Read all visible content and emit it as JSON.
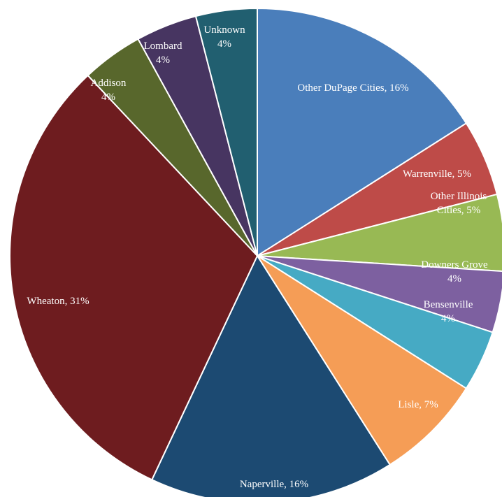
{
  "chart_data": {
    "type": "pie",
    "title": "",
    "start_angle_deg": 0,
    "direction": "clockwise",
    "slices": [
      {
        "label": "Other DuPage Cities",
        "value": 16,
        "display": [
          "Other DuPage Cities, 16%"
        ],
        "color": "#4a7ebb"
      },
      {
        "label": "Warrenville",
        "value": 5,
        "display": [
          "Warrenville, 5%"
        ],
        "color": "#be4b48"
      },
      {
        "label": "Other Illinois Cities",
        "value": 5,
        "display": [
          "Other Illinois",
          "Cities, 5%"
        ],
        "color": "#98b954"
      },
      {
        "label": "Downers Grove",
        "value": 4,
        "display": [
          "Downers Grove",
          "4%"
        ],
        "color": "#7d60a0"
      },
      {
        "label": "Bensenville",
        "value": 4,
        "display": [
          "Bensenville",
          "4%"
        ],
        "color": "#46aac4"
      },
      {
        "label": "Lisle",
        "value": 7,
        "display": [
          "Lisle, 7%"
        ],
        "color": "#f59d56"
      },
      {
        "label": "Naperville",
        "value": 16,
        "display": [
          "Naperville, 16%"
        ],
        "color": "#1c4a72"
      },
      {
        "label": "Wheaton",
        "value": 31,
        "display": [
          "Wheaton, 31%"
        ],
        "color": "#6e1c1f"
      },
      {
        "label": "Addison",
        "value": 4,
        "display": [
          "Addison",
          "4%"
        ],
        "color": "#58672c"
      },
      {
        "label": "Lombard",
        "value": 4,
        "display": [
          "Lombard",
          "4%"
        ],
        "color": "#473561"
      },
      {
        "label": "Unknown",
        "value": 4,
        "display": [
          "Unknown",
          "4%"
        ],
        "color": "#215f70"
      }
    ]
  }
}
